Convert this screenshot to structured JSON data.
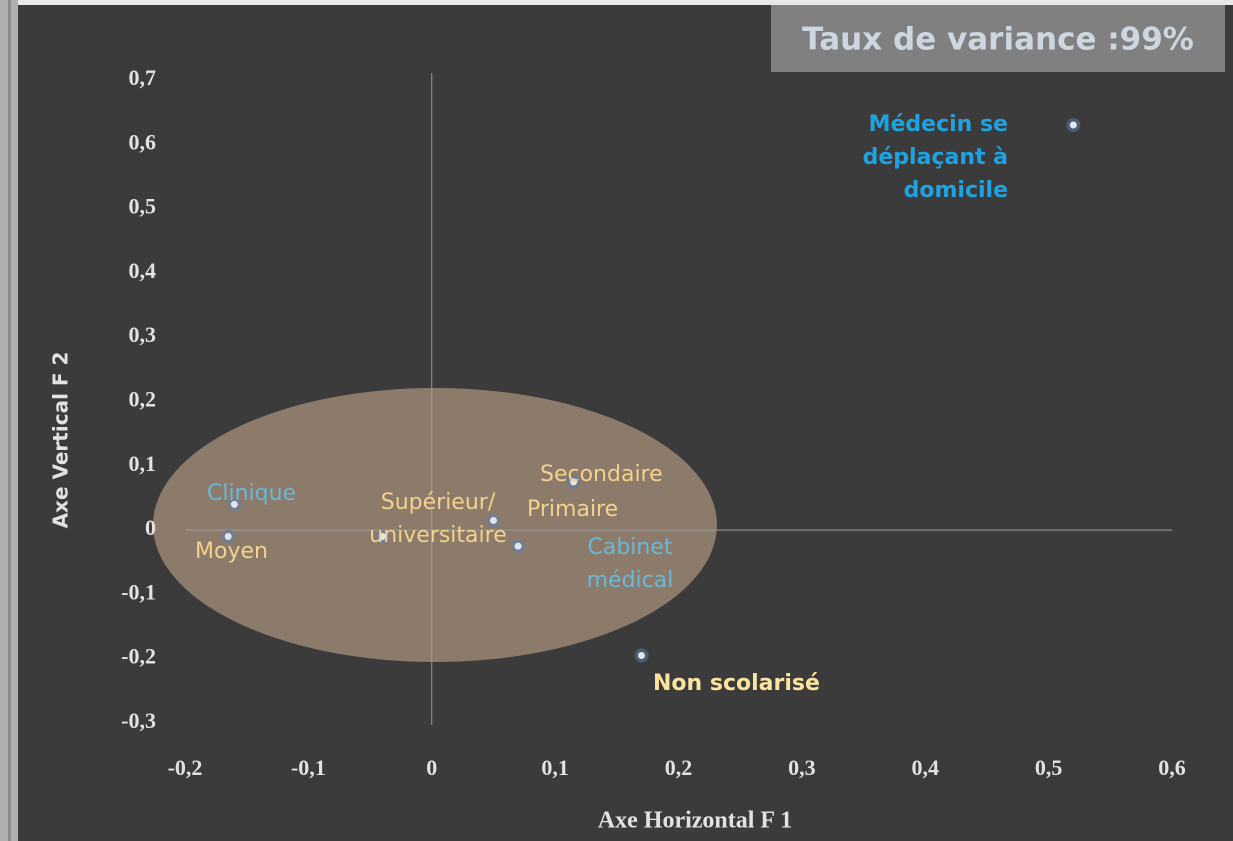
{
  "chart_data": {
    "type": "scatter",
    "title": "Taux de variance :99%",
    "xlabel": "Axe Horizontal F 1",
    "ylabel": "Axe Vertical F 2",
    "xlim": [
      -0.2,
      0.6
    ],
    "ylim": [
      -0.3,
      0.7
    ],
    "xticks": [
      {
        "value": -0.2,
        "label": "-0,2"
      },
      {
        "value": -0.1,
        "label": "-0,1"
      },
      0,
      {
        "value": 0.1,
        "label": "0,1"
      },
      {
        "value": 0.2,
        "label": "0,2"
      },
      {
        "value": 0.3,
        "label": "0,3"
      },
      {
        "value": 0.4,
        "label": "0,4"
      },
      {
        "value": 0.5,
        "label": "0,5"
      },
      {
        "value": 0.6,
        "label": "0,6"
      }
    ],
    "yticks": [
      {
        "value": -0.3,
        "label": "-0,3"
      },
      {
        "value": -0.2,
        "label": "-0,2"
      },
      {
        "value": -0.1,
        "label": "-0,1"
      },
      0,
      {
        "value": 0.1,
        "label": "0,1"
      },
      {
        "value": 0.2,
        "label": "0,2"
      },
      {
        "value": 0.3,
        "label": "0,3"
      },
      {
        "value": 0.4,
        "label": "0,4"
      },
      {
        "value": 0.5,
        "label": "0,5"
      },
      {
        "value": 0.6,
        "label": "0,6"
      },
      {
        "value": 0.7,
        "label": "0,7"
      }
    ],
    "points": [
      {
        "label": [
          "Médecin se",
          "déplaçant à",
          "domicile"
        ],
        "x": 0.52,
        "y": 0.63,
        "color": "#1fa3e0"
      },
      {
        "label": [
          "Clinique"
        ],
        "x": -0.16,
        "y": 0.04,
        "color": "#6ab7d6"
      },
      {
        "label": [
          "Moyen"
        ],
        "x": -0.165,
        "y": -0.01,
        "color": "#f2d28c"
      },
      {
        "label": [
          "Supérieur/",
          "universitaire"
        ],
        "x": -0.04,
        "y": -0.01,
        "color": "#f2d28c"
      },
      {
        "label": [
          "Secondaire"
        ],
        "x": 0.115,
        "y": 0.075,
        "color": "#f2d28c"
      },
      {
        "label": [
          "Primaire"
        ],
        "x": 0.05,
        "y": 0.015,
        "color": "#f2d28c"
      },
      {
        "label": [
          "Cabinet",
          "médical"
        ],
        "x": 0.07,
        "y": -0.025,
        "color": "#6ab7d6"
      },
      {
        "label": [
          "Non scolarisé"
        ],
        "x": 0.17,
        "y": -0.195,
        "color": "#fbe3a0"
      }
    ]
  }
}
